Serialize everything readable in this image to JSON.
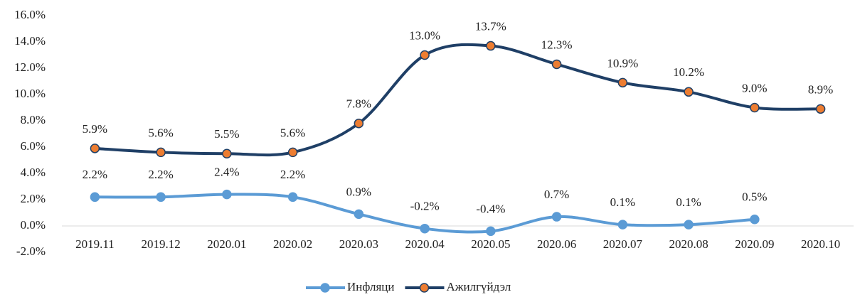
{
  "chart_data": {
    "type": "line",
    "categories": [
      "2019.11",
      "2019.12",
      "2020.01",
      "2020.02",
      "2020.03",
      "2020.04",
      "2020.05",
      "2020.06",
      "2020.07",
      "2020.08",
      "2020.09",
      "2020.10"
    ],
    "series": [
      {
        "name": "Инфляци",
        "color": "#5b9bd5",
        "marker_color": "#5b9bd5",
        "values": [
          2.2,
          2.2,
          2.4,
          2.2,
          0.9,
          -0.2,
          -0.4,
          0.7,
          0.1,
          0.1,
          0.5,
          null
        ],
        "value_labels": [
          "2.2%",
          "2.2%",
          "2.4%",
          "2.2%",
          "0.9%",
          "-0.2%",
          "-0.4%",
          "0.7%",
          "0.1%",
          "0.1%",
          "0.5%",
          null
        ]
      },
      {
        "name": "Ажилгүйдэл",
        "color": "#1f3f66",
        "marker_color": "#ed7d31",
        "values": [
          5.9,
          5.6,
          5.5,
          5.6,
          7.8,
          13.0,
          13.7,
          12.3,
          10.9,
          10.2,
          9.0,
          8.9
        ],
        "value_labels": [
          "5.9%",
          "5.6%",
          "5.5%",
          "5.6%",
          "7.8%",
          "13.0%",
          "13.7%",
          "12.3%",
          "10.9%",
          "10.2%",
          "9.0%",
          "8.9%"
        ]
      }
    ],
    "ylim": [
      -2,
      16
    ],
    "yticks": [
      {
        "value": -2,
        "label": "-2.0%"
      },
      {
        "value": 0,
        "label": "0.0%"
      },
      {
        "value": 2,
        "label": "2.0%"
      },
      {
        "value": 4,
        "label": "4.0%"
      },
      {
        "value": 6,
        "label": "6.0%"
      },
      {
        "value": 8,
        "label": "8.0%"
      },
      {
        "value": 10,
        "label": "10.0%"
      },
      {
        "value": 12,
        "label": "12.0%"
      },
      {
        "value": 14,
        "label": "14.0%"
      },
      {
        "value": 16,
        "label": "16.0%"
      }
    ],
    "grid": false,
    "legend": "bottom"
  }
}
